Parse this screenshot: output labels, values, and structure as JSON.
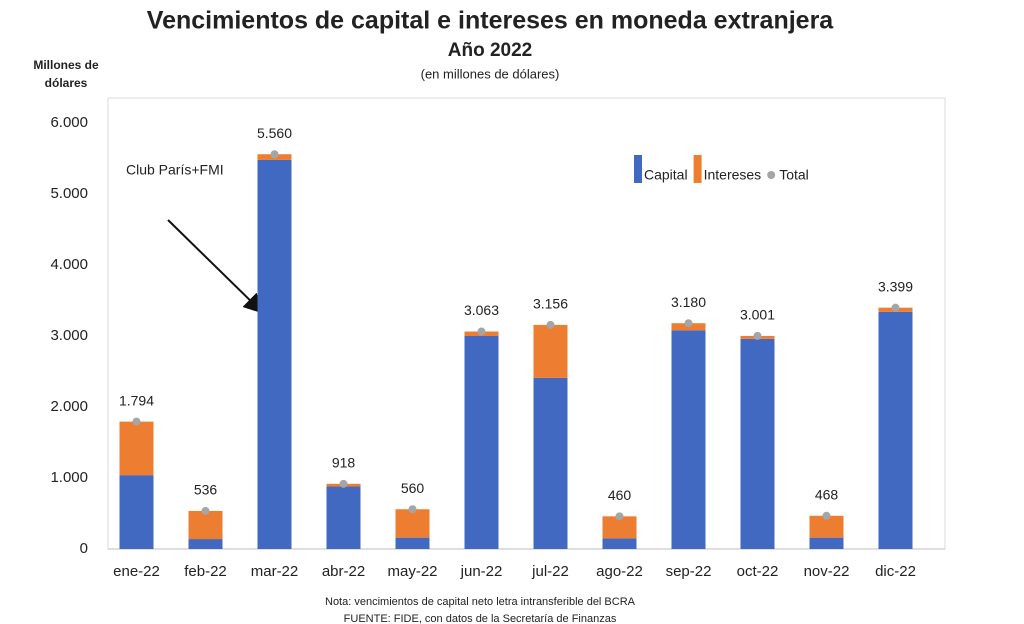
{
  "chart_data": {
    "type": "bar",
    "stacked": true,
    "title": "Vencimientos  de capital e intereses en moneda extranjera",
    "subtitle": "Año 2022",
    "units_note": "(en millones de dólares)",
    "ylabel": [
      "Millones de",
      "dólares"
    ],
    "annotation": "Club París+FMI",
    "notes": [
      "Nota: vencimientos  de capital neto letra intransferible del BCRA",
      "FUENTE: FIDE, con datos de la Secretaría de Finanzas"
    ],
    "categories": [
      "ene-22",
      "feb-22",
      "mar-22",
      "abr-22",
      "may-22",
      "jun-22",
      "jul-22",
      "ago-22",
      "sep-22",
      "oct-22",
      "nov-22",
      "dic-22"
    ],
    "series": [
      {
        "name": "Capital",
        "color": "#4169c2",
        "values": [
          1040,
          140,
          5480,
          880,
          160,
          3000,
          2410,
          150,
          3080,
          2960,
          160,
          3340
        ]
      },
      {
        "name": "Intereses",
        "color": "#ed7d31",
        "values": [
          754,
          396,
          80,
          38,
          400,
          63,
          746,
          310,
          100,
          41,
          308,
          59
        ]
      },
      {
        "name": "Total",
        "color": "#a5a5a5",
        "mark": "dot",
        "values": [
          1794,
          536,
          5560,
          918,
          560,
          3063,
          3156,
          460,
          3180,
          3001,
          468,
          3399
        ],
        "value_labels": [
          "1.794",
          "536",
          "5.560",
          "918",
          "560",
          "3.063",
          "3.156",
          "460",
          "3.180",
          "3.001",
          "468",
          "3.399"
        ]
      }
    ],
    "ylim": [
      0,
      6000
    ],
    "yticks": [
      0,
      {
        "value": 1000,
        "label": "1.000"
      },
      {
        "value": 2000,
        "label": "2.000"
      },
      {
        "value": 3000,
        "label": "3.000"
      },
      {
        "value": 4000,
        "label": "4.000"
      },
      {
        "value": 5000,
        "label": "5.000"
      },
      {
        "value": 6000,
        "label": "6.000"
      }
    ],
    "legend": "upper right"
  }
}
